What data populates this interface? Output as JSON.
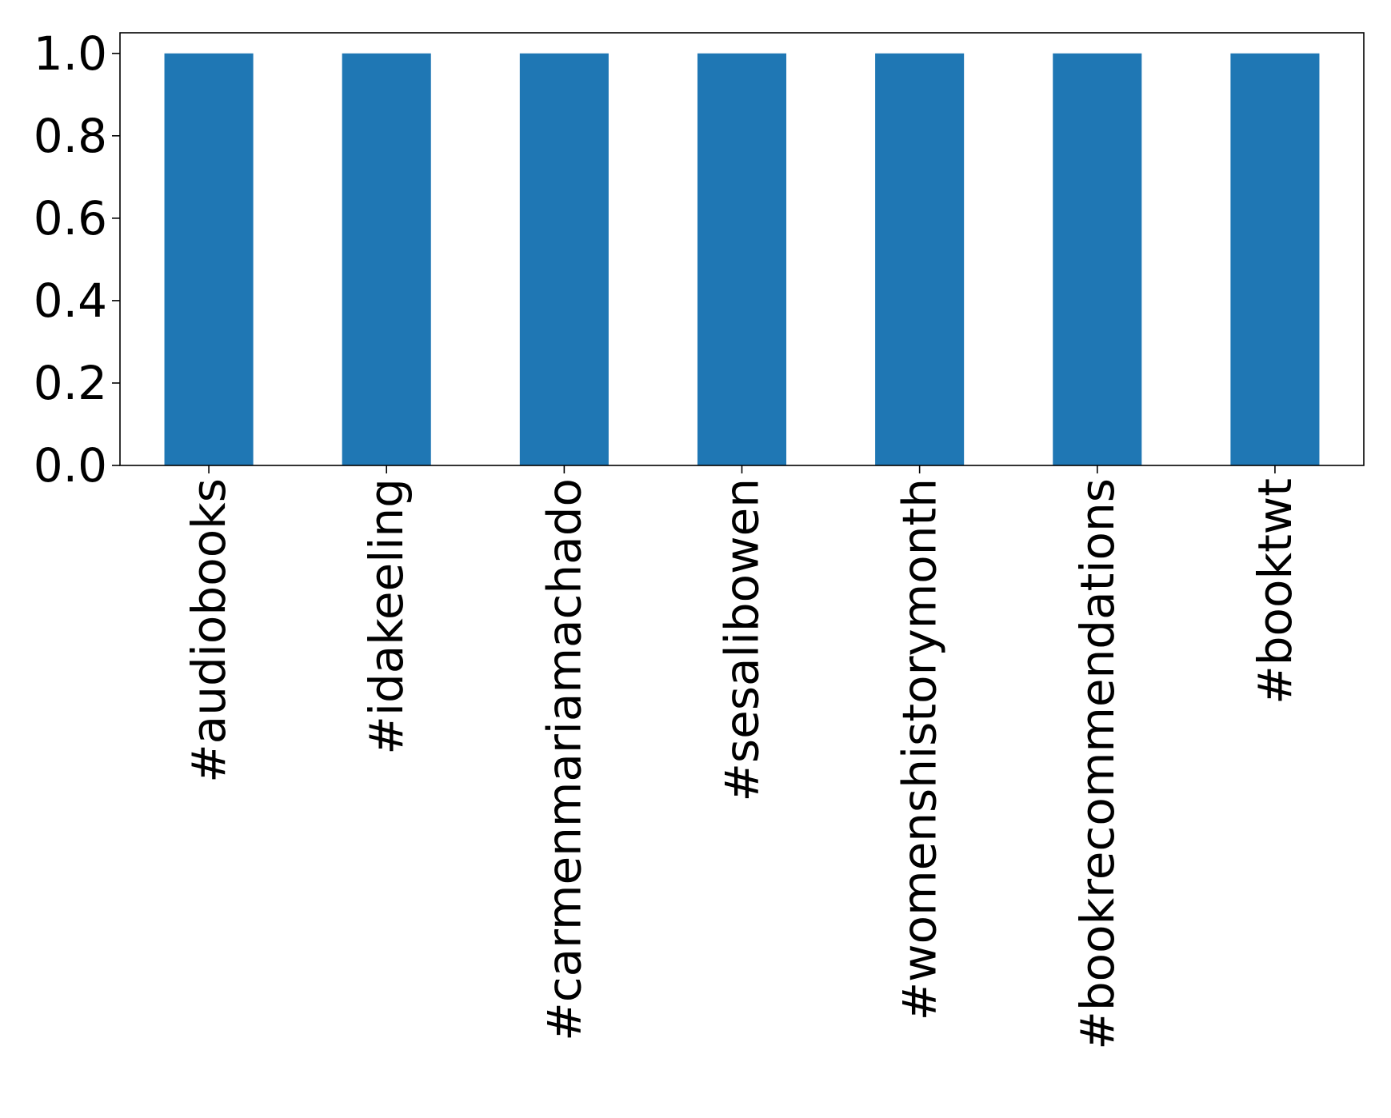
{
  "chart_data": {
    "type": "bar",
    "categories": [
      "#audiobooks",
      "#idakeeling",
      "#carmenmariamachado",
      "#sesalibowen",
      "#womenshistorymonth",
      "#bookrecommendations",
      "#booktwt"
    ],
    "values": [
      1.0,
      1.0,
      1.0,
      1.0,
      1.0,
      1.0,
      1.0
    ],
    "title": "",
    "xlabel": "",
    "ylabel": "",
    "ylim": [
      0,
      1.05
    ],
    "yticks": [
      "0.0",
      "0.2",
      "0.4",
      "0.6",
      "0.8",
      "1.0"
    ],
    "grid": false,
    "legend": "none",
    "bar_color": "#1f77b4"
  }
}
